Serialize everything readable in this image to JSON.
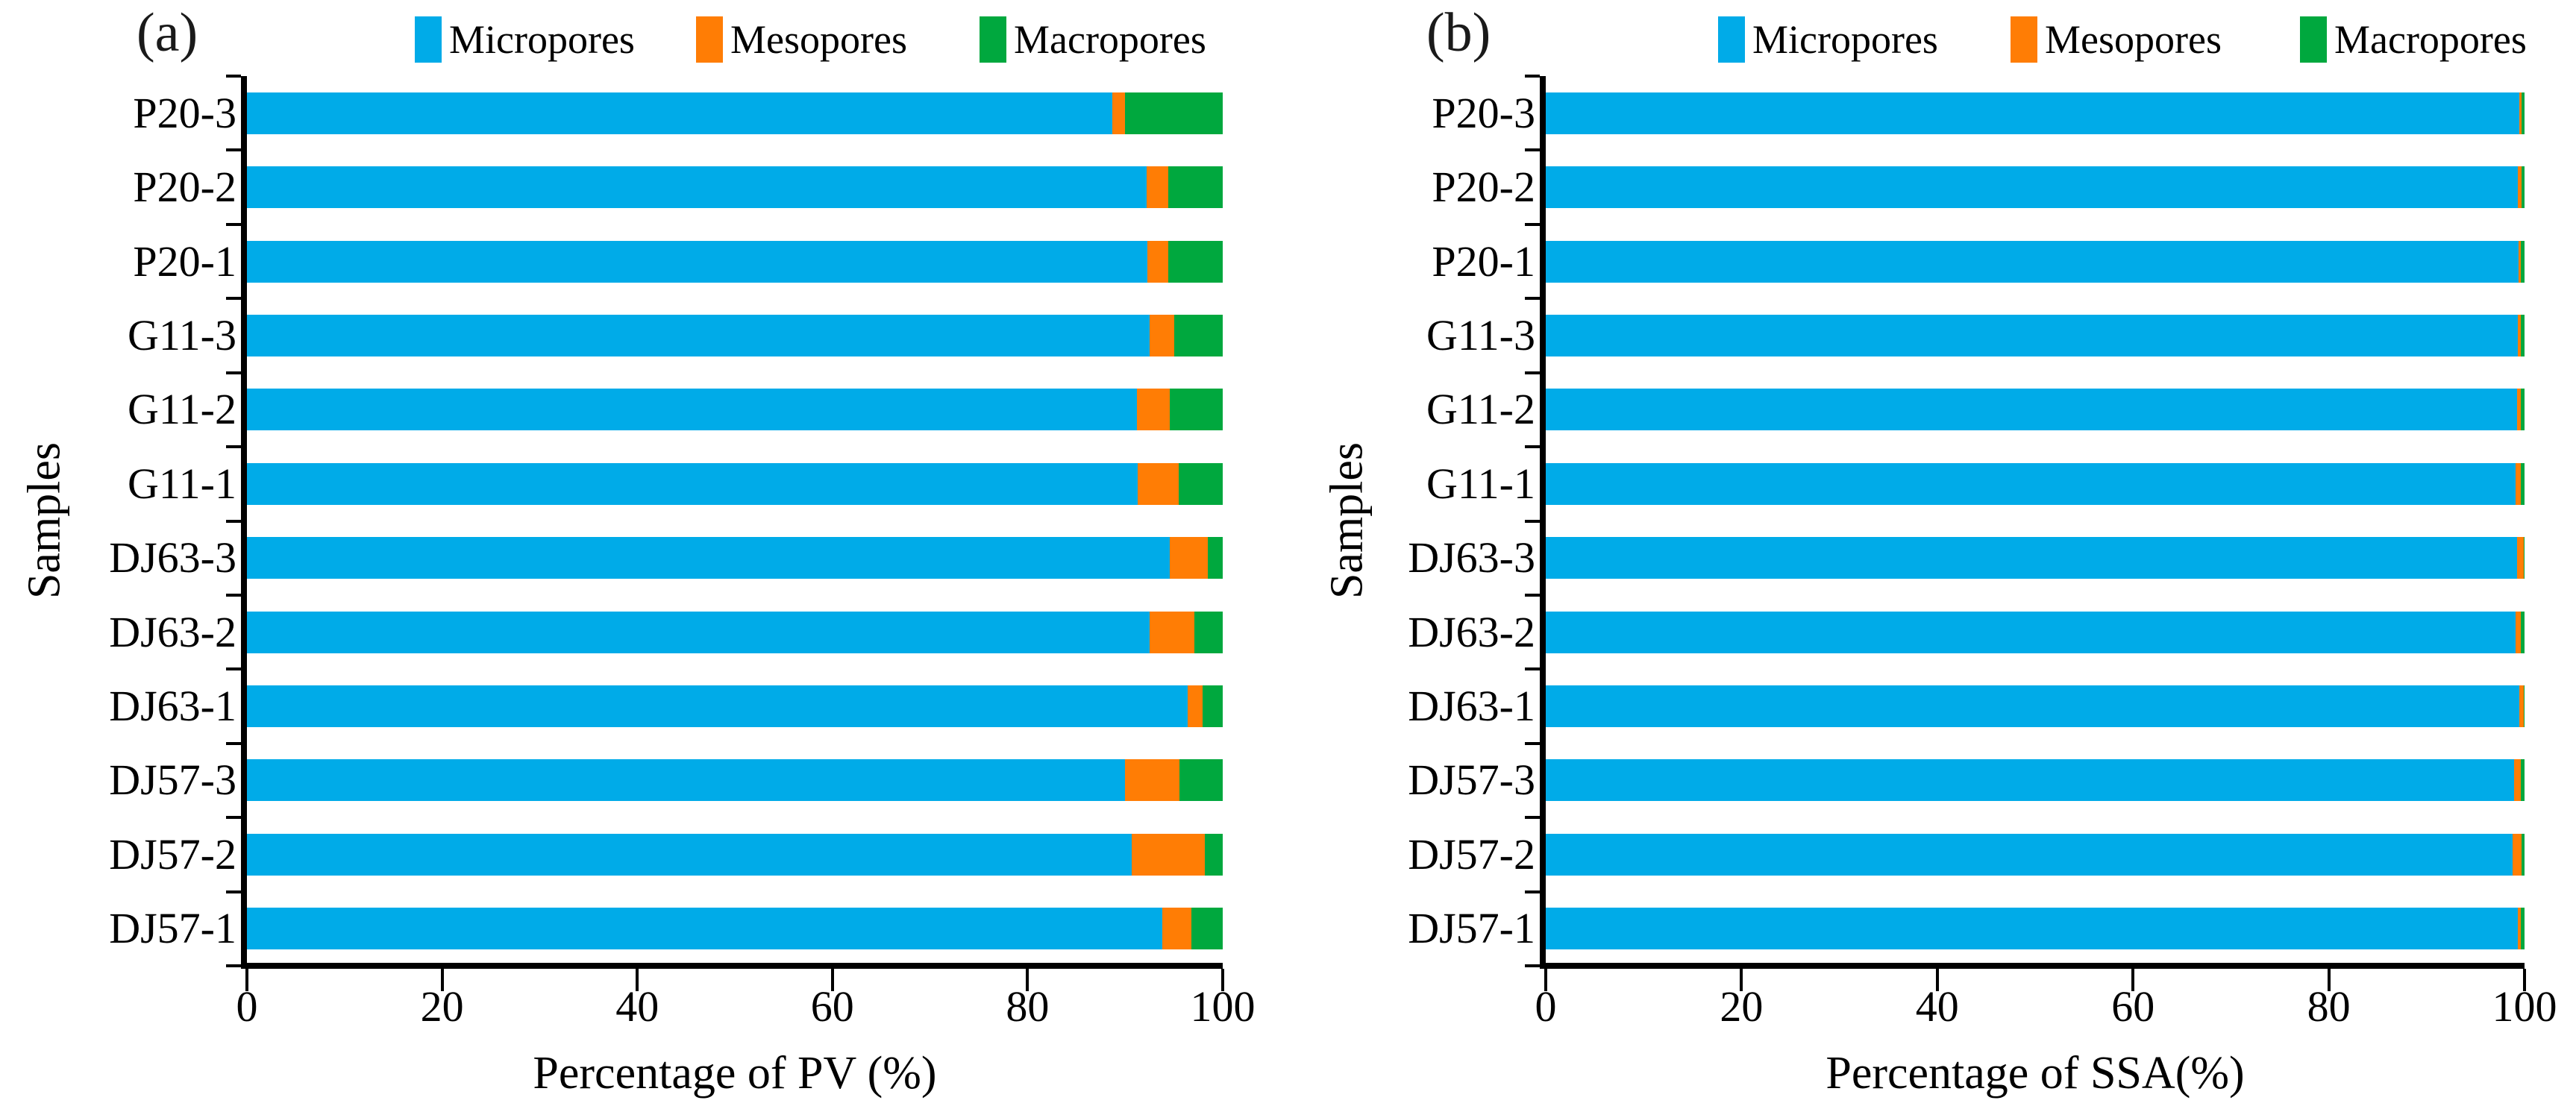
{
  "figure": {
    "background": "#ffffff",
    "text_color": "#000000"
  },
  "chart_data": [
    {
      "type": "bar",
      "orientation": "horizontal",
      "stacked": true,
      "panel_label": "(a)",
      "xlabel": "Percentage of PV (%)",
      "ylabel": "Samples",
      "xlim": [
        0,
        100
      ],
      "x_ticks": [
        0,
        20,
        40,
        60,
        80,
        100
      ],
      "grid": false,
      "legend_position": "top",
      "categories_top_to_bottom": [
        "P20-3",
        "P20-2",
        "P20-1",
        "G11-3",
        "G11-2",
        "G11-1",
        "DJ63-3",
        "DJ63-2",
        "DJ63-1",
        "DJ57-3",
        "DJ57-2",
        "DJ57-1"
      ],
      "series": [
        {
          "name": "Micropores",
          "color": "#00ABE8",
          "values": [
            88.7,
            92.2,
            92.3,
            92.5,
            91.2,
            91.3,
            94.6,
            92.5,
            96.4,
            90.0,
            90.7,
            93.8
          ]
        },
        {
          "name": "Mesopores",
          "color": "#FF7D05",
          "values": [
            1.3,
            2.2,
            2.1,
            2.5,
            3.4,
            4.2,
            3.9,
            4.6,
            1.5,
            5.6,
            7.5,
            3.0
          ]
        },
        {
          "name": "Macropores",
          "color": "#00A83E",
          "values": [
            10.0,
            5.6,
            5.6,
            5.0,
            5.4,
            4.5,
            1.5,
            2.9,
            2.1,
            4.4,
            1.8,
            3.2
          ]
        }
      ]
    },
    {
      "type": "bar",
      "orientation": "horizontal",
      "stacked": true,
      "panel_label": "(b)",
      "xlabel": "Percentage of SSA(%)",
      "ylabel": "Samples",
      "xlim": [
        0,
        100
      ],
      "x_ticks": [
        0,
        20,
        40,
        60,
        80,
        100
      ],
      "grid": false,
      "legend_position": "top",
      "categories_top_to_bottom": [
        "P20-3",
        "P20-2",
        "P20-1",
        "G11-3",
        "G11-2",
        "G11-1",
        "DJ63-3",
        "DJ63-2",
        "DJ63-1",
        "DJ57-3",
        "DJ57-2",
        "DJ57-1"
      ],
      "series": [
        {
          "name": "Micropores",
          "color": "#00ABE8",
          "values": [
            99.5,
            99.3,
            99.4,
            99.3,
            99.2,
            99.1,
            99.2,
            99.1,
            99.5,
            98.9,
            98.8,
            99.3
          ]
        },
        {
          "name": "Mesopores",
          "color": "#FF7D05",
          "values": [
            0.2,
            0.4,
            0.2,
            0.3,
            0.4,
            0.5,
            0.7,
            0.5,
            0.4,
            0.7,
            0.9,
            0.3
          ]
        },
        {
          "name": "Macropores",
          "color": "#00A83E",
          "values": [
            0.3,
            0.3,
            0.4,
            0.4,
            0.4,
            0.4,
            0.1,
            0.4,
            0.1,
            0.4,
            0.3,
            0.4
          ]
        }
      ]
    }
  ]
}
